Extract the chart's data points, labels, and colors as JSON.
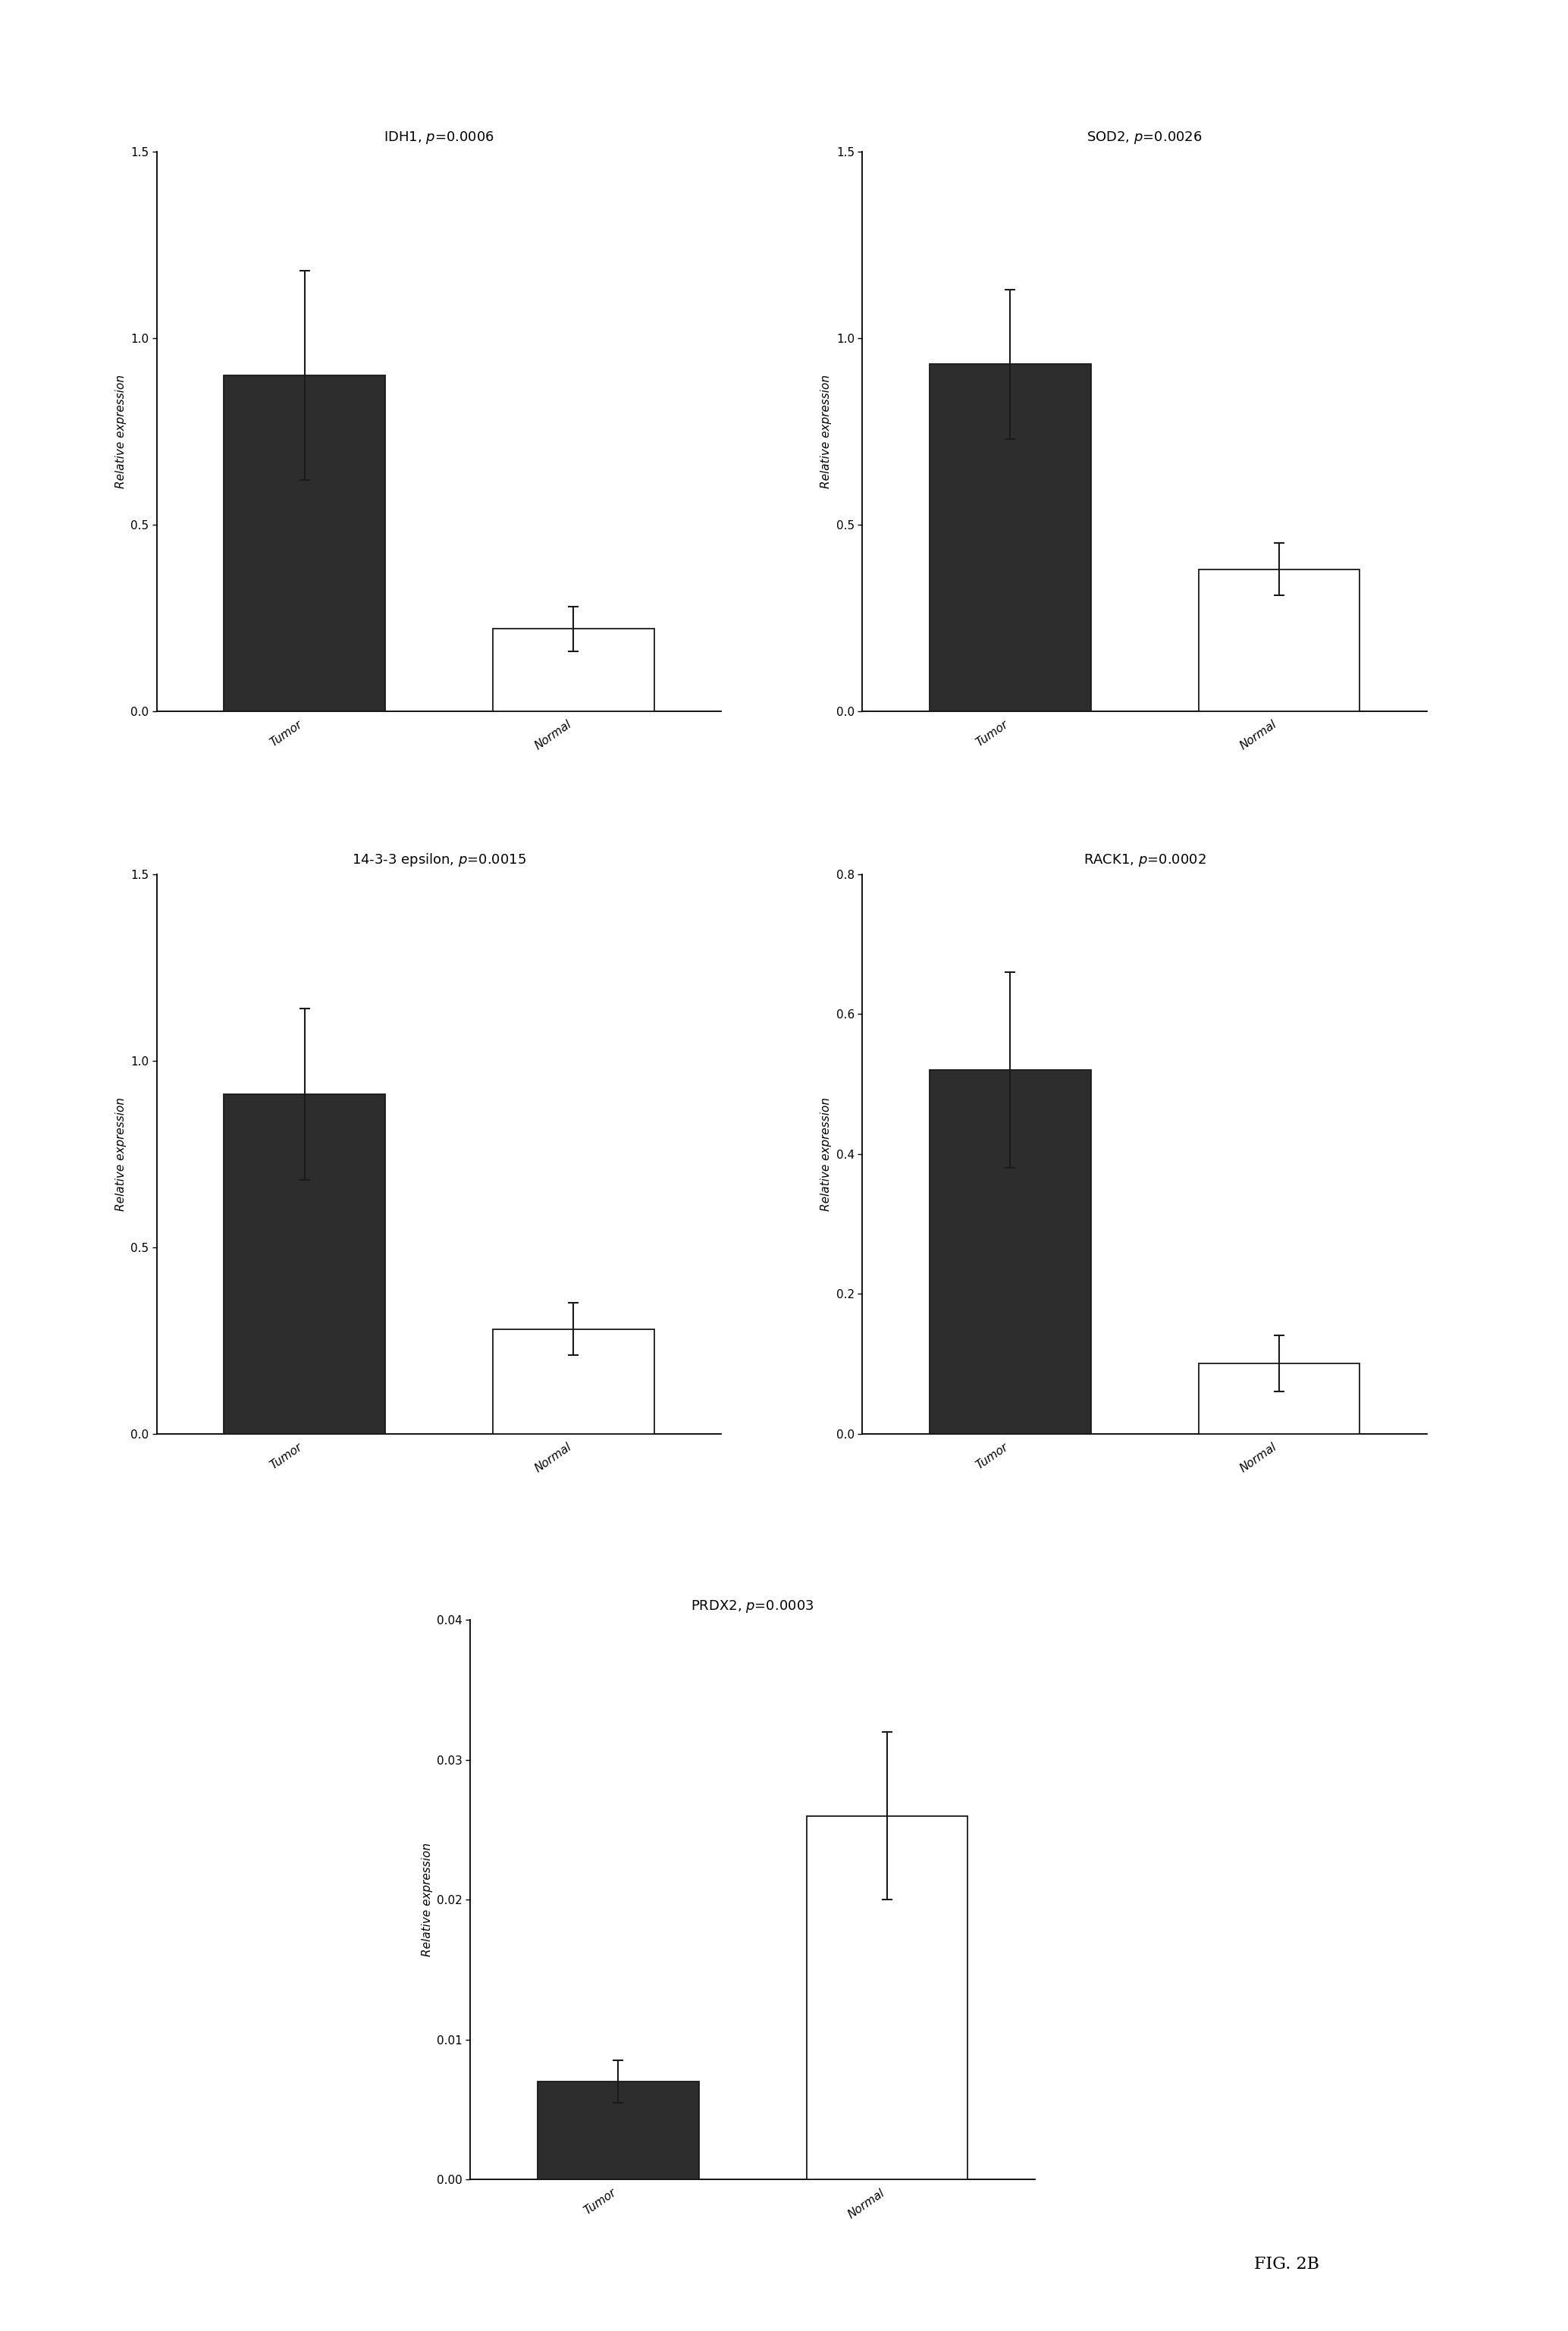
{
  "panels": [
    {
      "title": "IDH1, ",
      "pval": "=0.0006",
      "categories": [
        "Tumor",
        "Normal"
      ],
      "values": [
        0.9,
        0.22
      ],
      "errors": [
        0.28,
        0.06
      ],
      "colors": [
        "#2d2d2d",
        "#ffffff"
      ],
      "ylim": [
        0,
        1.5
      ],
      "yticks": [
        0.0,
        0.5,
        1.0,
        1.5
      ],
      "ylabel": "Relative expression"
    },
    {
      "title": "SOD2, ",
      "pval": "=0.0026",
      "categories": [
        "Tumor",
        "Normal"
      ],
      "values": [
        0.93,
        0.38
      ],
      "errors": [
        0.2,
        0.07
      ],
      "colors": [
        "#2d2d2d",
        "#ffffff"
      ],
      "ylim": [
        0,
        1.5
      ],
      "yticks": [
        0.0,
        0.5,
        1.0,
        1.5
      ],
      "ylabel": "Relative expression"
    },
    {
      "title": "14-3-3 epsilon, ",
      "pval": "=0.0015",
      "categories": [
        "Tumor",
        "Normal"
      ],
      "values": [
        0.91,
        0.28
      ],
      "errors": [
        0.23,
        0.07
      ],
      "colors": [
        "#2d2d2d",
        "#ffffff"
      ],
      "ylim": [
        0,
        1.5
      ],
      "yticks": [
        0.0,
        0.5,
        1.0,
        1.5
      ],
      "ylabel": "Relative expression"
    },
    {
      "title": "RACK1, ",
      "pval": "=0.0002",
      "categories": [
        "Tumor",
        "Normal"
      ],
      "values": [
        0.52,
        0.1
      ],
      "errors": [
        0.14,
        0.04
      ],
      "colors": [
        "#2d2d2d",
        "#ffffff"
      ],
      "ylim": [
        0,
        0.8
      ],
      "yticks": [
        0.0,
        0.2,
        0.4,
        0.6,
        0.8
      ],
      "ylabel": "Relative expression"
    },
    {
      "title": "PRDX2, ",
      "pval": "=0.0003",
      "categories": [
        "Tumor",
        "Normal"
      ],
      "values": [
        0.007,
        0.026
      ],
      "errors": [
        0.0015,
        0.006
      ],
      "colors": [
        "#2d2d2d",
        "#ffffff"
      ],
      "ylim": [
        0,
        0.04
      ],
      "yticks": [
        0.0,
        0.01,
        0.02,
        0.03,
        0.04
      ],
      "ylabel": "Relative expression"
    }
  ],
  "fig2b_label": "FIG. 2B",
  "background_color": "#ffffff",
  "bar_width": 0.6,
  "edge_color": "#1a1a1a",
  "error_color": "#1a1a1a",
  "title_fontsize": 13,
  "tick_fontsize": 11,
  "ylabel_fontsize": 11,
  "xtick_fontsize": 11
}
